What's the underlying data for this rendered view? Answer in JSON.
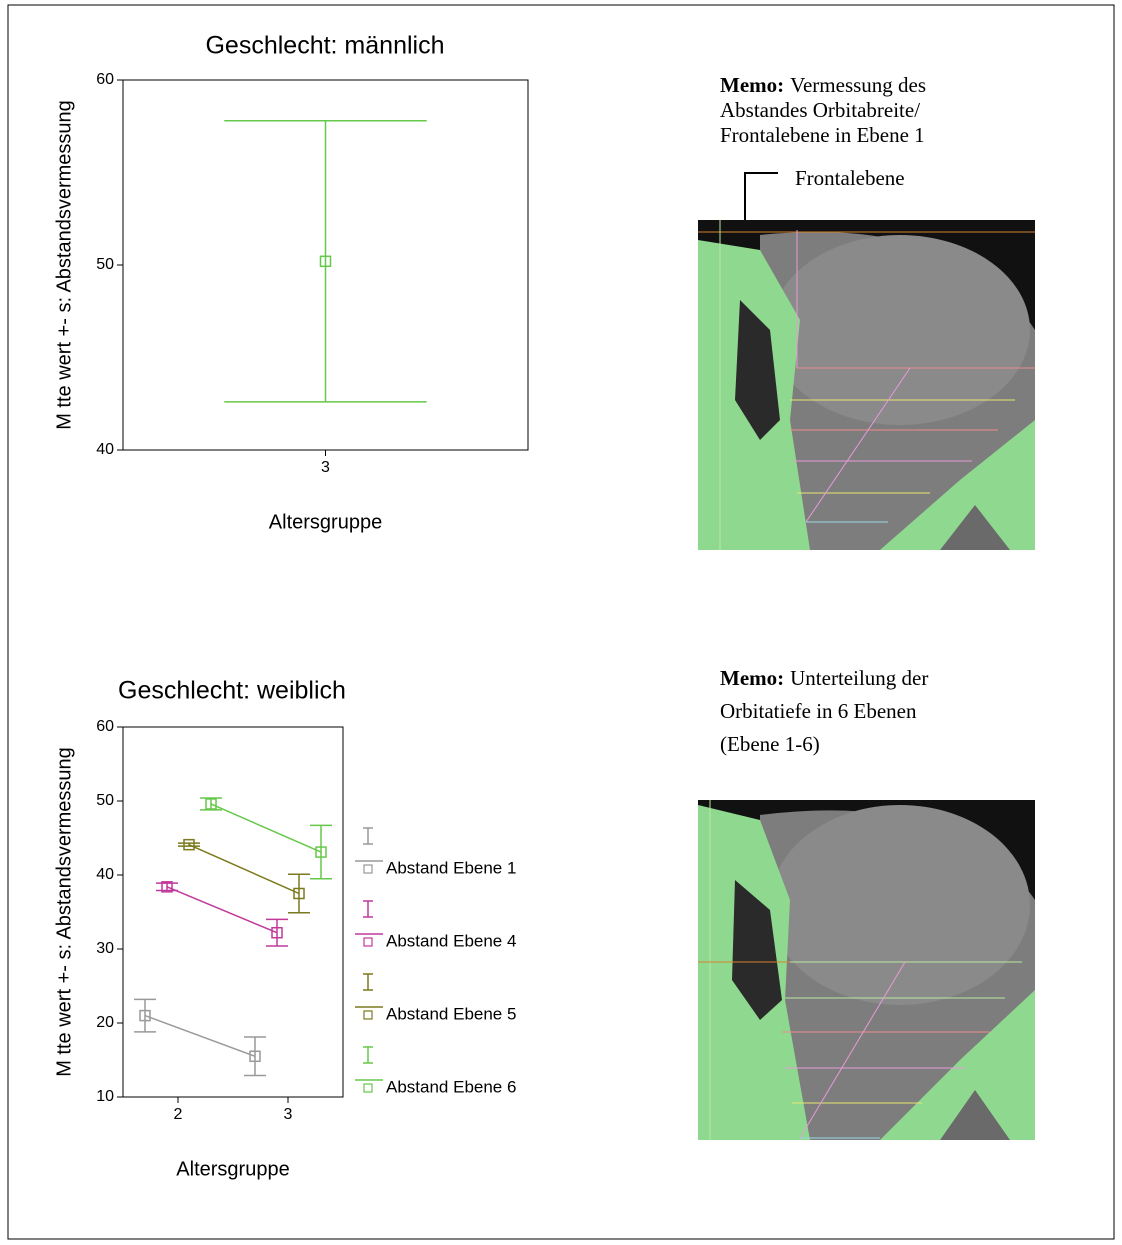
{
  "chart_data": [
    {
      "type": "errorbar",
      "title": "Geschlecht: männlich",
      "y_label": "M tte wert +- s: Abstandsvermessung",
      "x_label": "Altersgruppe",
      "categories": [
        "3"
      ],
      "values": [
        50.2
      ],
      "errors": [
        7.6
      ],
      "color": "#66c84a",
      "ylim": [
        40,
        60
      ],
      "yticks": [
        40,
        50,
        60
      ]
    },
    {
      "type": "errorbar",
      "title": "Geschlecht: weiblich",
      "y_label": "M tte wert +- s: Abstandsvermessung",
      "x_label": "Altersgruppe",
      "categories": [
        "2",
        "3"
      ],
      "series": [
        {
          "name": "Abstand Ebene 1",
          "color": "#999999",
          "values": [
            21,
            15.5
          ],
          "errors": [
            2.2,
            2.6
          ]
        },
        {
          "name": "Abstand Ebene 4",
          "color": "#c0399b",
          "values": [
            38.4,
            32.2
          ],
          "errors": [
            0.5,
            1.8
          ]
        },
        {
          "name": "Abstand Ebene 5",
          "color": "#7a7a1e",
          "values": [
            44.1,
            37.5
          ],
          "errors": [
            0.2,
            2.6
          ]
        },
        {
          "name": "Abstand Ebene 6",
          "color": "#66c84a",
          "values": [
            49.6,
            43.1
          ],
          "errors": [
            0.8,
            3.6
          ]
        }
      ],
      "ylim": [
        10,
        60
      ],
      "yticks": [
        10,
        20,
        30,
        40,
        50,
        60
      ]
    }
  ],
  "memos": [
    {
      "label": "Memo:",
      "lines": [
        "Vermessung des",
        "Abstandes Orbitabreite/",
        "Frontalebene in Ebene 1"
      ]
    },
    {
      "label": "Memo:",
      "lines": [
        "Unterteilung der",
        "Orbitatiefe in 6 Ebenen",
        "(Ebene 1-6)"
      ]
    }
  ],
  "image_label": "Frontalebene"
}
